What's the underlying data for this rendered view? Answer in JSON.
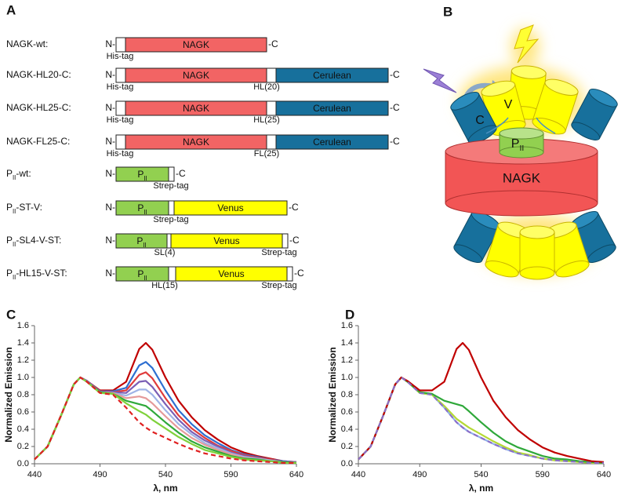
{
  "panel_labels": [
    "A",
    "B",
    "C",
    "D"
  ],
  "constructs": [
    {
      "label": "NAGK-wt:",
      "n_term": "N-",
      "c_term": "-C",
      "segments": [
        {
          "color": "#ffffff"
        },
        {
          "text": "NAGK",
          "color": "#f26464"
        }
      ],
      "tags": [
        "His-tag"
      ]
    },
    {
      "label": "NAGK-HL20-C:",
      "n_term": "N-",
      "c_term": "-C",
      "segments": [
        {
          "color": "#ffffff"
        },
        {
          "text": "NAGK",
          "color": "#f26464"
        },
        {
          "color": "#ffffff"
        },
        {
          "text": "Cerulean",
          "color": "#17709c"
        }
      ],
      "tags": [
        "His-tag",
        "HL(20)"
      ]
    },
    {
      "label": "NAGK-HL25-C:",
      "n_term": "N-",
      "c_term": "-C",
      "segments": [
        {
          "color": "#ffffff"
        },
        {
          "text": "NAGK",
          "color": "#f26464"
        },
        {
          "color": "#ffffff"
        },
        {
          "text": "Cerulean",
          "color": "#17709c"
        }
      ],
      "tags": [
        "His-tag",
        "HL(25)"
      ]
    },
    {
      "label": "NAGK-FL25-C:",
      "n_term": "N-",
      "c_term": "-C",
      "segments": [
        {
          "color": "#ffffff"
        },
        {
          "text": "NAGK",
          "color": "#f26464"
        },
        {
          "color": "#ffffff"
        },
        {
          "text": "Cerulean",
          "color": "#17709c"
        }
      ],
      "tags": [
        "His-tag",
        "FL(25)"
      ]
    },
    {
      "label": [
        "P",
        "II",
        "-wt:"
      ],
      "n_term": "N-",
      "c_term": "-C",
      "segments": [
        {
          "text": [
            "P",
            "II"
          ],
          "color": "#92d050"
        },
        {
          "color": "#ffffff"
        }
      ],
      "tags": [
        "Strep-tag"
      ]
    },
    {
      "label": [
        "P",
        "II",
        "-ST-V:"
      ],
      "n_term": "N-",
      "c_term": "-C",
      "segments": [
        {
          "text": [
            "P",
            "II"
          ],
          "color": "#92d050"
        },
        {
          "color": "#ffffff"
        },
        {
          "text": "Venus",
          "color": "#ffff00"
        }
      ],
      "tags": [
        "Strep-tag"
      ]
    },
    {
      "label": [
        "P",
        "II",
        "-SL4-V-ST:"
      ],
      "n_term": "N-",
      "c_term": "-C",
      "segments": [
        {
          "text": [
            "P",
            "II"
          ],
          "color": "#92d050"
        },
        {
          "color": "#ffffff"
        },
        {
          "text": "Venus",
          "color": "#ffff00"
        },
        {
          "color": "#ffffff"
        }
      ],
      "tags": [
        "SL(4)",
        "Strep-tag"
      ]
    },
    {
      "label": [
        "P",
        "II",
        "-HL15-V-ST:"
      ],
      "n_term": "N-",
      "c_term": "-C",
      "segments": [
        {
          "text": [
            "P",
            "II"
          ],
          "color": "#92d050"
        },
        {
          "color": "#ffffff"
        },
        {
          "text": "Venus",
          "color": "#ffff00"
        },
        {
          "color": "#ffffff"
        }
      ],
      "tags": [
        "HL(15)",
        "Strep-tag"
      ]
    }
  ],
  "diagram": {
    "cerulean": "C",
    "venus": "V",
    "pii": [
      "P",
      "II"
    ],
    "nagk": "NAGK"
  },
  "chart_data": [
    {
      "type": "line",
      "xlabel": "λ, nm",
      "ylabel": "Normalized Emission",
      "x": [
        440,
        450,
        460,
        470,
        475,
        480,
        490,
        500,
        510,
        520,
        525,
        530,
        540,
        550,
        560,
        570,
        580,
        590,
        600,
        610,
        620,
        630,
        640
      ],
      "xlim": [
        440,
        640
      ],
      "xticks": [
        440,
        490,
        540,
        590,
        640
      ],
      "ylim": [
        0,
        1.6
      ],
      "yticks": [
        {
          "value": 0,
          "label": "0.0"
        },
        0.2,
        0.4,
        0.6,
        0.8,
        {
          "value": 1,
          "label": "1.0"
        },
        1.2,
        1.4,
        1.6
      ],
      "series": [
        {
          "color": "#c00000",
          "values": [
            0.05,
            0.2,
            0.55,
            0.92,
            1.0,
            0.96,
            0.85,
            0.85,
            0.95,
            1.33,
            1.4,
            1.32,
            1.0,
            0.73,
            0.54,
            0.39,
            0.28,
            0.19,
            0.13,
            0.09,
            0.06,
            0.03,
            0.02
          ]
        },
        {
          "color": "#2e6fd1",
          "values": [
            0.05,
            0.2,
            0.55,
            0.92,
            1.0,
            0.96,
            0.84,
            0.84,
            0.88,
            1.14,
            1.18,
            1.11,
            0.85,
            0.62,
            0.46,
            0.33,
            0.24,
            0.16,
            0.11,
            0.08,
            0.05,
            0.03,
            0.02
          ]
        },
        {
          "color": "#e03c3c",
          "values": [
            0.05,
            0.2,
            0.55,
            0.92,
            1.0,
            0.96,
            0.84,
            0.83,
            0.85,
            1.03,
            1.06,
            0.99,
            0.76,
            0.56,
            0.41,
            0.3,
            0.21,
            0.15,
            0.1,
            0.07,
            0.05,
            0.02,
            0.02
          ]
        },
        {
          "color": "#7b5fb5",
          "values": [
            0.05,
            0.2,
            0.55,
            0.92,
            1.0,
            0.96,
            0.84,
            0.83,
            0.82,
            0.95,
            0.96,
            0.89,
            0.69,
            0.51,
            0.37,
            0.27,
            0.2,
            0.13,
            0.09,
            0.06,
            0.04,
            0.02,
            0.02
          ]
        },
        {
          "color": "#9fb3e6",
          "values": [
            0.05,
            0.2,
            0.55,
            0.92,
            1.0,
            0.95,
            0.83,
            0.82,
            0.79,
            0.86,
            0.86,
            0.8,
            0.62,
            0.46,
            0.34,
            0.24,
            0.18,
            0.12,
            0.08,
            0.06,
            0.04,
            0.02,
            0.01
          ]
        },
        {
          "color": "#e59a9a",
          "values": [
            0.05,
            0.2,
            0.55,
            0.92,
            1.0,
            0.95,
            0.83,
            0.82,
            0.76,
            0.78,
            0.76,
            0.7,
            0.55,
            0.41,
            0.3,
            0.22,
            0.16,
            0.11,
            0.07,
            0.05,
            0.03,
            0.02,
            0.01
          ]
        },
        {
          "color": "#2fa83a",
          "values": [
            0.05,
            0.2,
            0.55,
            0.92,
            1.0,
            0.95,
            0.83,
            0.81,
            0.73,
            0.69,
            0.67,
            0.61,
            0.48,
            0.36,
            0.26,
            0.19,
            0.14,
            0.09,
            0.06,
            0.05,
            0.03,
            0.02,
            0.01
          ]
        },
        {
          "color": "#7fd13b",
          "values": [
            0.05,
            0.2,
            0.55,
            0.92,
            1.0,
            0.95,
            0.82,
            0.81,
            0.7,
            0.61,
            0.57,
            0.51,
            0.41,
            0.31,
            0.23,
            0.16,
            0.12,
            0.08,
            0.05,
            0.04,
            0.03,
            0.01,
            0.01
          ]
        },
        {
          "color": "#e02020",
          "style": "dashed",
          "values": [
            0.05,
            0.2,
            0.55,
            0.92,
            1.0,
            0.95,
            0.82,
            0.8,
            0.65,
            0.48,
            0.42,
            0.37,
            0.3,
            0.23,
            0.17,
            0.12,
            0.09,
            0.06,
            0.04,
            0.03,
            0.02,
            0.01,
            0.01
          ]
        }
      ]
    },
    {
      "type": "line",
      "xlabel": "λ, nm",
      "ylabel": "Normalized Emission",
      "x": [
        440,
        450,
        460,
        470,
        475,
        480,
        490,
        500,
        510,
        520,
        525,
        530,
        540,
        550,
        560,
        570,
        580,
        590,
        600,
        610,
        620,
        630,
        640
      ],
      "xlim": [
        440,
        640
      ],
      "xticks": [
        440,
        490,
        540,
        590,
        640
      ],
      "ylim": [
        0,
        1.6
      ],
      "yticks": [
        {
          "value": 0,
          "label": "0.0"
        },
        0.2,
        0.4,
        0.6,
        0.8,
        {
          "value": 1,
          "label": "1.0"
        },
        1.2,
        1.4,
        1.6
      ],
      "series": [
        {
          "color": "#8fb0e8",
          "values": [
            0.05,
            0.2,
            0.55,
            0.92,
            1.0,
            0.95,
            0.82,
            0.8,
            0.65,
            0.48,
            0.42,
            0.37,
            0.3,
            0.23,
            0.17,
            0.12,
            0.09,
            0.06,
            0.04,
            0.03,
            0.02,
            0.01,
            0.01
          ]
        },
        {
          "color": "#b5d935",
          "values": [
            0.05,
            0.2,
            0.55,
            0.92,
            1.0,
            0.95,
            0.82,
            0.8,
            0.67,
            0.52,
            0.47,
            0.42,
            0.34,
            0.26,
            0.19,
            0.13,
            0.1,
            0.06,
            0.04,
            0.03,
            0.02,
            0.01,
            0.01
          ]
        },
        {
          "color": "#2fa83a",
          "values": [
            0.05,
            0.2,
            0.55,
            0.92,
            1.0,
            0.95,
            0.83,
            0.81,
            0.73,
            0.69,
            0.67,
            0.61,
            0.48,
            0.36,
            0.26,
            0.19,
            0.14,
            0.09,
            0.06,
            0.05,
            0.03,
            0.02,
            0.01
          ]
        },
        {
          "color": "#c00000",
          "values": [
            0.05,
            0.2,
            0.55,
            0.92,
            1.0,
            0.96,
            0.85,
            0.85,
            0.95,
            1.33,
            1.4,
            1.32,
            1.0,
            0.73,
            0.54,
            0.39,
            0.28,
            0.19,
            0.13,
            0.09,
            0.06,
            0.03,
            0.02
          ]
        },
        {
          "color": "#8a6fc9",
          "style": "dashed",
          "values": [
            0.05,
            0.2,
            0.55,
            0.92,
            1.0,
            0.95,
            0.82,
            0.8,
            0.65,
            0.48,
            0.42,
            0.37,
            0.3,
            0.23,
            0.17,
            0.12,
            0.09,
            0.06,
            0.04,
            0.03,
            0.02,
            0.01,
            0.01
          ]
        }
      ]
    }
  ]
}
